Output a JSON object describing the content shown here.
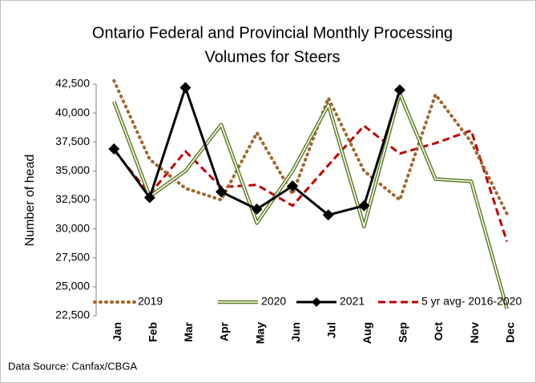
{
  "chart_data": {
    "type": "line",
    "title": [
      "Ontario Federal and Provincial Monthly Processing",
      "Volumes for Steers"
    ],
    "y_label": "Number of head",
    "source": "Data Source: Canfax/CBGA",
    "categories": [
      "Jan",
      "Feb",
      "Mar",
      "Apr",
      "May",
      "Jun",
      "Jul",
      "Aug",
      "Sep",
      "Oct",
      "Nov",
      "Dec"
    ],
    "series": [
      {
        "name": "2019",
        "color": "#a0682d",
        "style": "dotted",
        "values": [
          42800,
          36000,
          33500,
          32500,
          38300,
          33000,
          41300,
          35000,
          32500,
          41600,
          37500,
          31300
        ]
      },
      {
        "name": "2020",
        "color": "#5a7a1e",
        "style": "double",
        "values": [
          41000,
          32800,
          35000,
          39000,
          30500,
          35000,
          40700,
          30200,
          41700,
          34300,
          34100,
          23100
        ]
      },
      {
        "name": "2021",
        "color": "#000000",
        "style": "solid-diamond",
        "values": [
          36900,
          32700,
          42200,
          33200,
          31700,
          33700,
          31200,
          32000,
          42000,
          null,
          null,
          null
        ]
      },
      {
        "name": "5 yr avg- 2016-2020",
        "color": "#c00000",
        "style": "dashed",
        "values": [
          36800,
          33000,
          36700,
          33600,
          33800,
          32000,
          35500,
          38900,
          36500,
          37400,
          38500,
          28900
        ]
      }
    ],
    "ylim": [
      22500,
      42500
    ],
    "yticks": [
      {
        "value": 22500,
        "label": "22,500"
      },
      {
        "value": 25000,
        "label": "25,000"
      },
      {
        "value": 27500,
        "label": "27,500"
      },
      {
        "value": 30000,
        "label": "30,000"
      },
      {
        "value": 32500,
        "label": "32,500"
      },
      {
        "value": 35000,
        "label": "35,000"
      },
      {
        "value": 37500,
        "label": "37,500"
      },
      {
        "value": 40000,
        "label": "40,000"
      },
      {
        "value": 42500,
        "label": "42,500"
      }
    ],
    "legend": "bottom"
  }
}
